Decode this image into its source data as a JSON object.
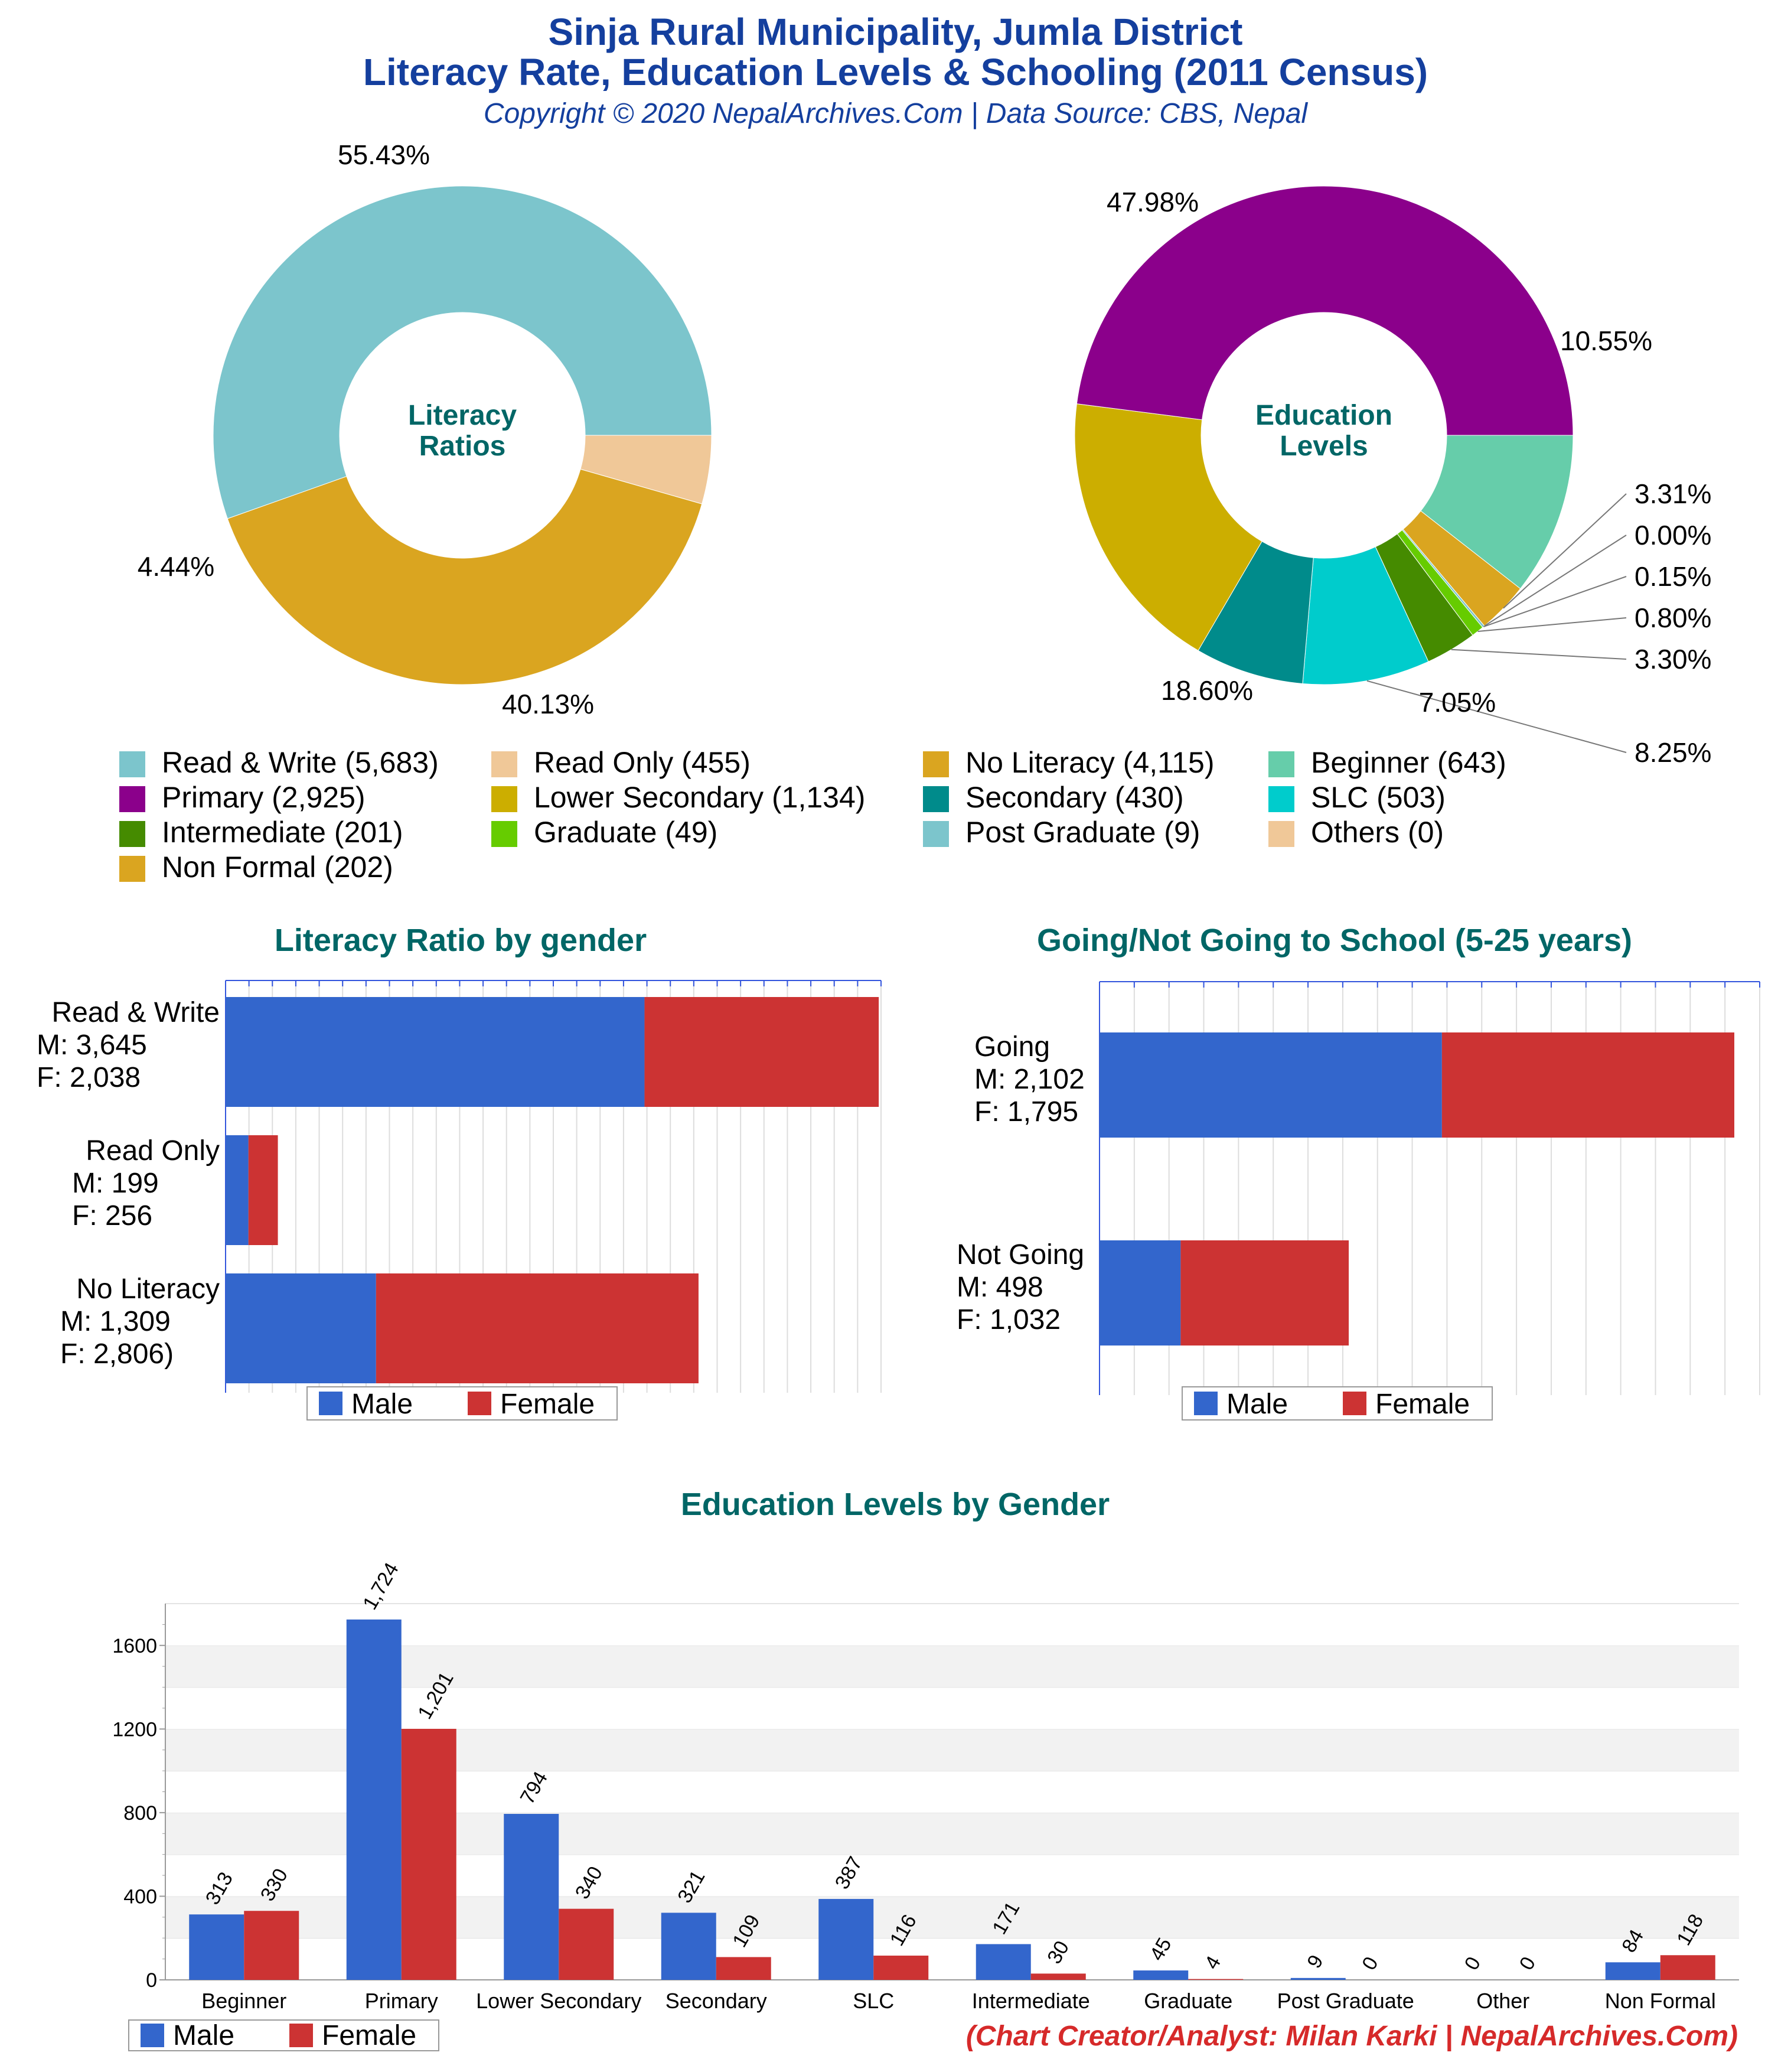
{
  "title": {
    "line1": "Sinja Rural Municipality, Jumla District",
    "line2": "Literacy Rate, Education Levels & Schooling (2011 Census)",
    "subtitle": "Copyright © 2020 NepalArchives.Com | Data Source: CBS, Nepal"
  },
  "colors": {
    "male": "#3366cc",
    "female": "#cc3333",
    "title_teal": "#006666",
    "title_blue": "#143f9e",
    "footer_red": "#d62a2a"
  },
  "legend": [
    {
      "label": "Read & Write (5,683)",
      "color": "#7cc5cc"
    },
    {
      "label": "Read Only (455)",
      "color": "#f0c898"
    },
    {
      "label": "No Literacy (4,115)",
      "color": "#daa520"
    },
    {
      "label": "Beginner (643)",
      "color": "#66cdaa"
    },
    {
      "label": "Primary (2,925)",
      "color": "#8b008b"
    },
    {
      "label": "Lower Secondary (1,134)",
      "color": "#ccae00"
    },
    {
      "label": "Secondary (430)",
      "color": "#008b8b"
    },
    {
      "label": "SLC (503)",
      "color": "#00cccc"
    },
    {
      "label": "Intermediate (201)",
      "color": "#458b00"
    },
    {
      "label": "Graduate (49)",
      "color": "#66cc00"
    },
    {
      "label": "Post Graduate (9)",
      "color": "#7cc5cc"
    },
    {
      "label": "Others (0)",
      "color": "#f0c898"
    },
    {
      "label": "Non Formal (202)",
      "color": "#daa520"
    }
  ],
  "chart_data": [
    {
      "type": "pie",
      "title": "Literacy Ratios",
      "slices": [
        {
          "name": "Read & Write",
          "value": 5683,
          "label": "55.43%",
          "color": "#7cc5cc"
        },
        {
          "name": "No Literacy",
          "value": 4115,
          "label": "40.13%",
          "color": "#daa520"
        },
        {
          "name": "Read Only",
          "value": 455,
          "label": "4.44%",
          "color": "#f0c898"
        }
      ]
    },
    {
      "type": "pie",
      "title": "Education Levels",
      "slices": [
        {
          "name": "Beginner",
          "value": 643,
          "label": "10.55%",
          "color": "#66cdaa"
        },
        {
          "name": "Non Formal",
          "value": 202,
          "label": "3.31%",
          "color": "#daa520"
        },
        {
          "name": "Others",
          "value": 0,
          "label": "0.00%",
          "color": "#f0c898"
        },
        {
          "name": "Post Graduate",
          "value": 9,
          "label": "0.15%",
          "color": "#7cc5cc"
        },
        {
          "name": "Graduate",
          "value": 49,
          "label": "0.80%",
          "color": "#66cc00"
        },
        {
          "name": "Intermediate",
          "value": 201,
          "label": "3.30%",
          "color": "#458b00"
        },
        {
          "name": "SLC",
          "value": 503,
          "label": "8.25%",
          "color": "#00cccc"
        },
        {
          "name": "Secondary",
          "value": 430,
          "label": "7.05%",
          "color": "#008b8b"
        },
        {
          "name": "Lower Secondary",
          "value": 1134,
          "label": "18.60%",
          "color": "#ccae00"
        },
        {
          "name": "Primary",
          "value": 2925,
          "label": "47.98%",
          "color": "#8b008b"
        }
      ]
    },
    {
      "type": "bar",
      "title": "Literacy Ratio by gender",
      "orientation": "horizontal",
      "stacked": true,
      "categories": [
        {
          "lines": [
            "Read & Write",
            "M: 3,645",
            "F: 2,038"
          ],
          "male": 3645,
          "female": 2038
        },
        {
          "lines": [
            "Read Only",
            "M: 199",
            "F: 256"
          ],
          "male": 199,
          "female": 256
        },
        {
          "lines": [
            "No Literacy",
            "M: 1,309",
            "F: 2,806)"
          ],
          "male": 1309,
          "female": 2806
        }
      ],
      "legend": [
        "Male",
        "Female"
      ]
    },
    {
      "type": "bar",
      "title": "Going/Not Going to School (5-25 years)",
      "orientation": "horizontal",
      "stacked": true,
      "categories": [
        {
          "lines": [
            "Going",
            "M: 2,102",
            "F: 1,795"
          ],
          "male": 2102,
          "female": 1795
        },
        {
          "lines": [
            "Not Going",
            "M: 498",
            "F: 1,032"
          ],
          "male": 498,
          "female": 1032
        }
      ],
      "legend": [
        "Male",
        "Female"
      ]
    },
    {
      "type": "bar",
      "title": "Education Levels by Gender",
      "categories": [
        "Beginner",
        "Primary",
        "Lower Secondary",
        "Secondary",
        "SLC",
        "Intermediate",
        "Graduate",
        "Post Graduate",
        "Other",
        "Non Formal"
      ],
      "series": [
        {
          "name": "Male",
          "values": [
            313,
            1724,
            794,
            321,
            387,
            171,
            45,
            9,
            0,
            84
          ],
          "labels": [
            "313",
            "1,724",
            "794",
            "321",
            "387",
            "171",
            "45",
            "9",
            "0",
            "84"
          ]
        },
        {
          "name": "Female",
          "values": [
            330,
            1201,
            340,
            109,
            116,
            30,
            4,
            0,
            0,
            118
          ],
          "labels": [
            "330",
            "1,201",
            "340",
            "109",
            "116",
            "30",
            "4",
            "0",
            "0",
            "118"
          ]
        }
      ],
      "yticks": [
        "0",
        "400",
        "800",
        "1200",
        "1600"
      ],
      "ylim": [
        0,
        1800
      ],
      "legend": [
        "Male",
        "Female"
      ]
    }
  ],
  "footer": "(Chart Creator/Analyst: Milan Karki | NepalArchives.Com)"
}
